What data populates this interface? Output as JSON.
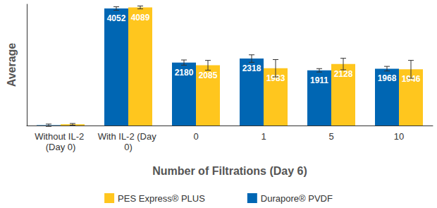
{
  "chart_data": {
    "type": "bar",
    "categories": [
      "Without IL-2 (Day 0)",
      "With IL-2 (Day 0)",
      "0",
      "1",
      "5",
      "10"
    ],
    "x_label": "Number of Filtrations (Day 6)",
    "y_label": "Average",
    "ylim": [
      0,
      4200
    ],
    "grid": false,
    "tick_labels": "x",
    "legend": "bottom",
    "data_labels": true,
    "series": [
      {
        "name": "Durapore® PVDF",
        "color": "#0066b3",
        "values": [
          10,
          4052,
          2180,
          2318,
          1911,
          1968
        ],
        "value_labels": [
          null,
          "4052",
          "2180",
          "2318",
          "1911",
          "1968"
        ],
        "errors": [
          40,
          60,
          90,
          130,
          60,
          80
        ]
      },
      {
        "name": "PES Express® PLUS",
        "color": "#ffc61e",
        "values": [
          40,
          4089,
          2085,
          1983,
          2128,
          1946
        ],
        "value_labels": [
          null,
          "4089",
          "2085",
          "1983",
          "2128",
          "1946"
        ],
        "errors": [
          30,
          50,
          170,
          300,
          200,
          310
        ]
      }
    ]
  }
}
